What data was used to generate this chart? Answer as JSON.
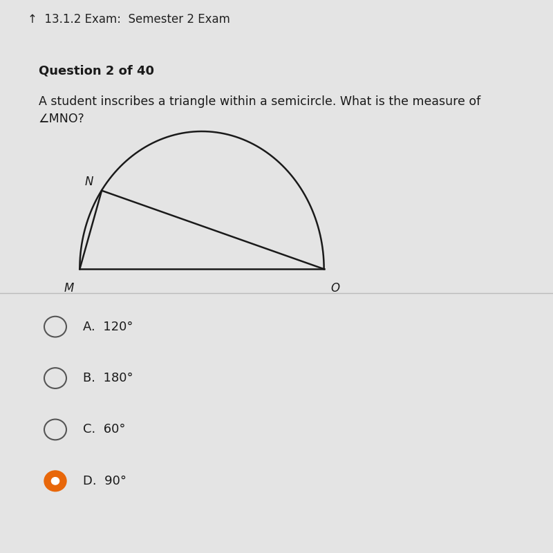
{
  "bg_color": "#e4e4e4",
  "header_bg": "#00bcd4",
  "header_text": "13.1.2 Exam:  Semester 2 Exam",
  "header_text_color": "#222222",
  "question_label": "Question 2 of 40",
  "question_text": "A student inscribes a triangle within a semicircle. What is the measure of\n∠MNO?",
  "M": [
    -1.0,
    0.0
  ],
  "N": [
    -0.82,
    0.57
  ],
  "O": [
    1.0,
    0.0
  ],
  "line_color": "#1a1a1a",
  "line_width": 1.8,
  "label_M": "M",
  "label_N": "N",
  "label_O": "O",
  "choices": [
    "A.  120°",
    "B.  180°",
    "C.  60°",
    "D.  90°"
  ],
  "selected_choice": 3,
  "radio_color_selected": "#e8670a",
  "radio_border": "#555555",
  "text_color": "#1a1a1a"
}
